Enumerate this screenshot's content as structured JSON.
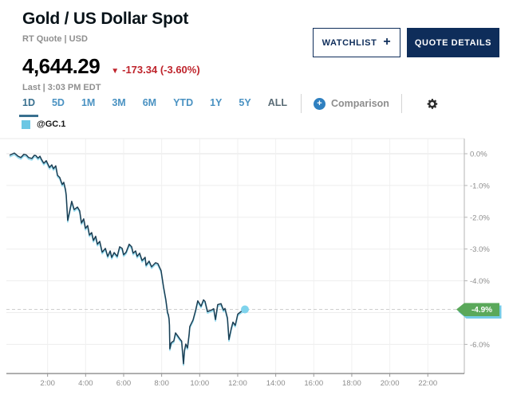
{
  "colors": {
    "navy": "#0e2d5a",
    "red": "#bf242c",
    "tab_blue": "#4a92c2",
    "tab_active": "#39708f",
    "series_cyan": "#6cc7e4",
    "badge_green": "#5aa85a"
  },
  "header": {
    "title": "Gold / US Dollar Spot",
    "subtitle": "RT Quote | USD",
    "price": "4,644.29",
    "change_icon": "▼",
    "change": "-173.34 (-3.60%)",
    "last": "Last | 3:03 PM EDT",
    "watchlist_label": "WATCHLIST",
    "watchlist_plus": "+",
    "quote_details_label": "QUOTE DETAILS"
  },
  "toolbar": {
    "tabs": [
      {
        "label": "1D",
        "state": "active"
      },
      {
        "label": "5D",
        "state": "normal"
      },
      {
        "label": "1M",
        "state": "normal"
      },
      {
        "label": "3M",
        "state": "normal"
      },
      {
        "label": "6M",
        "state": "normal"
      },
      {
        "label": "YTD",
        "state": "normal"
      },
      {
        "label": "1Y",
        "state": "normal"
      },
      {
        "label": "5Y",
        "state": "normal"
      },
      {
        "label": "ALL",
        "state": "muted"
      }
    ],
    "comparison_plus": "+",
    "comparison_label": "Comparison"
  },
  "legend": {
    "symbol": "@GC.1",
    "swatch_color": "#6cc7e4"
  },
  "chart_data": {
    "type": "line",
    "series_name": "@GC.1",
    "x_unit": "hour-of-day",
    "x_range": [
      0,
      23.9
    ],
    "ylim": [
      -6.92,
      0.48
    ],
    "y_ticks": [
      {
        "p": 0,
        "label": "0.0%"
      },
      {
        "p": -1,
        "label": "-1.0%"
      },
      {
        "p": -2,
        "label": "-2.0%"
      },
      {
        "p": -3,
        "label": "-3.0%"
      },
      {
        "p": -4,
        "label": "-4.0%"
      },
      {
        "p": -5,
        "label": "-5.0%"
      },
      {
        "p": -6,
        "label": "-6.0%"
      }
    ],
    "x_ticks": [
      {
        "h": 2,
        "label": "2:00"
      },
      {
        "h": 4,
        "label": "4:00"
      },
      {
        "h": 6,
        "label": "6:00"
      },
      {
        "h": 8,
        "label": "8:00"
      },
      {
        "h": 10,
        "label": "10:00"
      },
      {
        "h": 12,
        "label": "12:00"
      },
      {
        "h": 14,
        "label": "14:00"
      },
      {
        "h": 16,
        "label": "16:00"
      },
      {
        "h": 18,
        "label": "18:00"
      },
      {
        "h": 20,
        "label": "20:00"
      },
      {
        "h": 22,
        "label": "22:00"
      }
    ],
    "current_value_pct": -4.9,
    "badge_label": "-4.9%",
    "grid": true,
    "legend_position": "top-left",
    "line_color": "#1c3e53",
    "line_glow_color": "#86d7ee",
    "dot_color": "#7fd3ec",
    "dashed_color": "#cfcfcf",
    "badge_bg": "#5aa85a",
    "badge_shadow": "#74cbe6",
    "points": [
      [
        0,
        -0.05
      ],
      [
        0.25,
        0.02
      ],
      [
        0.45,
        -0.08
      ],
      [
        0.59,
        -0.12
      ],
      [
        0.75,
        -0.02
      ],
      [
        0.88,
        -0.04
      ],
      [
        1.0,
        -0.12
      ],
      [
        1.17,
        -0.15
      ],
      [
        1.3,
        -0.05
      ],
      [
        1.38,
        -0.06
      ],
      [
        1.5,
        -0.14
      ],
      [
        1.6,
        -0.08
      ],
      [
        1.68,
        -0.18
      ],
      [
        1.8,
        -0.3
      ],
      [
        1.93,
        -0.22
      ],
      [
        2.1,
        -0.43
      ],
      [
        2.22,
        -0.35
      ],
      [
        2.31,
        -0.47
      ],
      [
        2.43,
        -0.38
      ],
      [
        2.52,
        -0.68
      ],
      [
        2.64,
        -0.75
      ],
      [
        2.77,
        -0.97
      ],
      [
        2.85,
        -0.9
      ],
      [
        2.94,
        -1.13
      ],
      [
        2.98,
        -1.3
      ],
      [
        3.06,
        -2.1
      ],
      [
        3.18,
        -1.75
      ],
      [
        3.27,
        -1.5
      ],
      [
        3.4,
        -1.76
      ],
      [
        3.57,
        -1.68
      ],
      [
        3.69,
        -1.8
      ],
      [
        3.78,
        -2.18
      ],
      [
        3.9,
        -2.05
      ],
      [
        3.99,
        -2.35
      ],
      [
        4.11,
        -2.26
      ],
      [
        4.2,
        -2.56
      ],
      [
        4.32,
        -2.48
      ],
      [
        4.41,
        -2.73
      ],
      [
        4.53,
        -2.6
      ],
      [
        4.62,
        -2.85
      ],
      [
        4.74,
        -2.76
      ],
      [
        4.87,
        -3.1
      ],
      [
        5.04,
        -2.98
      ],
      [
        5.16,
        -3.23
      ],
      [
        5.29,
        -3.06
      ],
      [
        5.37,
        -3.26
      ],
      [
        5.5,
        -3.11
      ],
      [
        5.66,
        -3.23
      ],
      [
        5.79,
        -2.93
      ],
      [
        5.92,
        -2.98
      ],
      [
        6.0,
        -3.18
      ],
      [
        6.13,
        -3.1
      ],
      [
        6.29,
        -2.85
      ],
      [
        6.42,
        -2.93
      ],
      [
        6.5,
        -3.13
      ],
      [
        6.63,
        -3.06
      ],
      [
        6.71,
        -3.23
      ],
      [
        6.84,
        -3.13
      ],
      [
        6.97,
        -3.36
      ],
      [
        7.13,
        -3.26
      ],
      [
        7.18,
        -3.51
      ],
      [
        7.34,
        -3.38
      ],
      [
        7.47,
        -3.56
      ],
      [
        7.68,
        -3.43
      ],
      [
        7.8,
        -3.46
      ],
      [
        7.97,
        -3.68
      ],
      [
        8.1,
        -4.19
      ],
      [
        8.22,
        -4.6
      ],
      [
        8.31,
        -5.0
      ],
      [
        8.35,
        -5.06
      ],
      [
        8.39,
        -5.19
      ],
      [
        8.41,
        -5.39
      ],
      [
        8.43,
        -6.14
      ],
      [
        8.5,
        -5.95
      ],
      [
        8.64,
        -5.89
      ],
      [
        8.73,
        -5.64
      ],
      [
        8.85,
        -5.74
      ],
      [
        8.98,
        -5.85
      ],
      [
        9.05,
        -5.9
      ],
      [
        9.15,
        -6.61
      ],
      [
        9.2,
        -6.2
      ],
      [
        9.27,
        -5.99
      ],
      [
        9.36,
        -6.11
      ],
      [
        9.44,
        -5.7
      ],
      [
        9.48,
        -5.44
      ],
      [
        9.65,
        -5.23
      ],
      [
        9.78,
        -4.94
      ],
      [
        9.9,
        -4.63
      ],
      [
        10.07,
        -4.8
      ],
      [
        10.2,
        -4.6
      ],
      [
        10.28,
        -4.65
      ],
      [
        10.41,
        -4.97
      ],
      [
        10.49,
        -4.95
      ],
      [
        10.62,
        -4.92
      ],
      [
        10.74,
        -4.88
      ],
      [
        10.83,
        -5.22
      ],
      [
        10.95,
        -4.75
      ],
      [
        11.12,
        -4.72
      ],
      [
        11.25,
        -4.92
      ],
      [
        11.33,
        -4.87
      ],
      [
        11.46,
        -5.17
      ],
      [
        11.54,
        -5.85
      ],
      [
        11.66,
        -5.5
      ],
      [
        11.75,
        -5.3
      ],
      [
        11.87,
        -5.4
      ],
      [
        12.0,
        -5.05
      ],
      [
        12.17,
        -4.97
      ],
      [
        12.38,
        -4.9
      ]
    ]
  }
}
